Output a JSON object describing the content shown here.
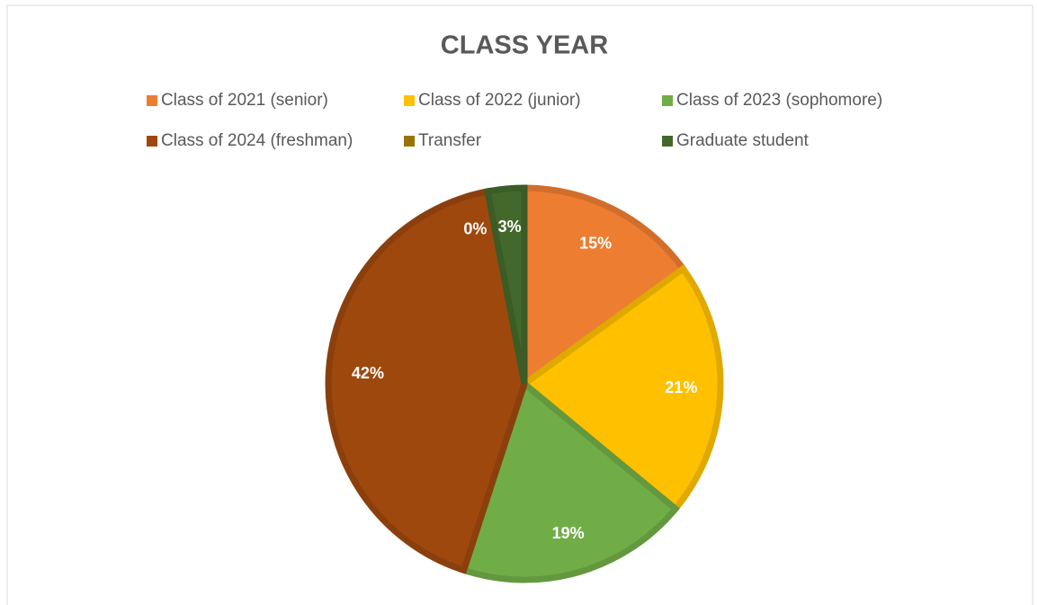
{
  "chart_data": {
    "type": "pie",
    "title": "CLASS YEAR",
    "categories": [
      "Class of 2021 (senior)",
      "Class of 2022 (junior)",
      "Class of 2023 (sophomore)",
      "Class of 2024 (freshman)",
      "Transfer",
      "Graduate student"
    ],
    "values": [
      15,
      21,
      19,
      42,
      0,
      3
    ],
    "value_labels": [
      "15%",
      "21%",
      "19%",
      "42%",
      "0%",
      "3%"
    ],
    "colors": [
      "#ED7D31",
      "#FFC000",
      "#70AD47",
      "#9E480E",
      "#997300",
      "#43682B"
    ],
    "legend": "top"
  }
}
